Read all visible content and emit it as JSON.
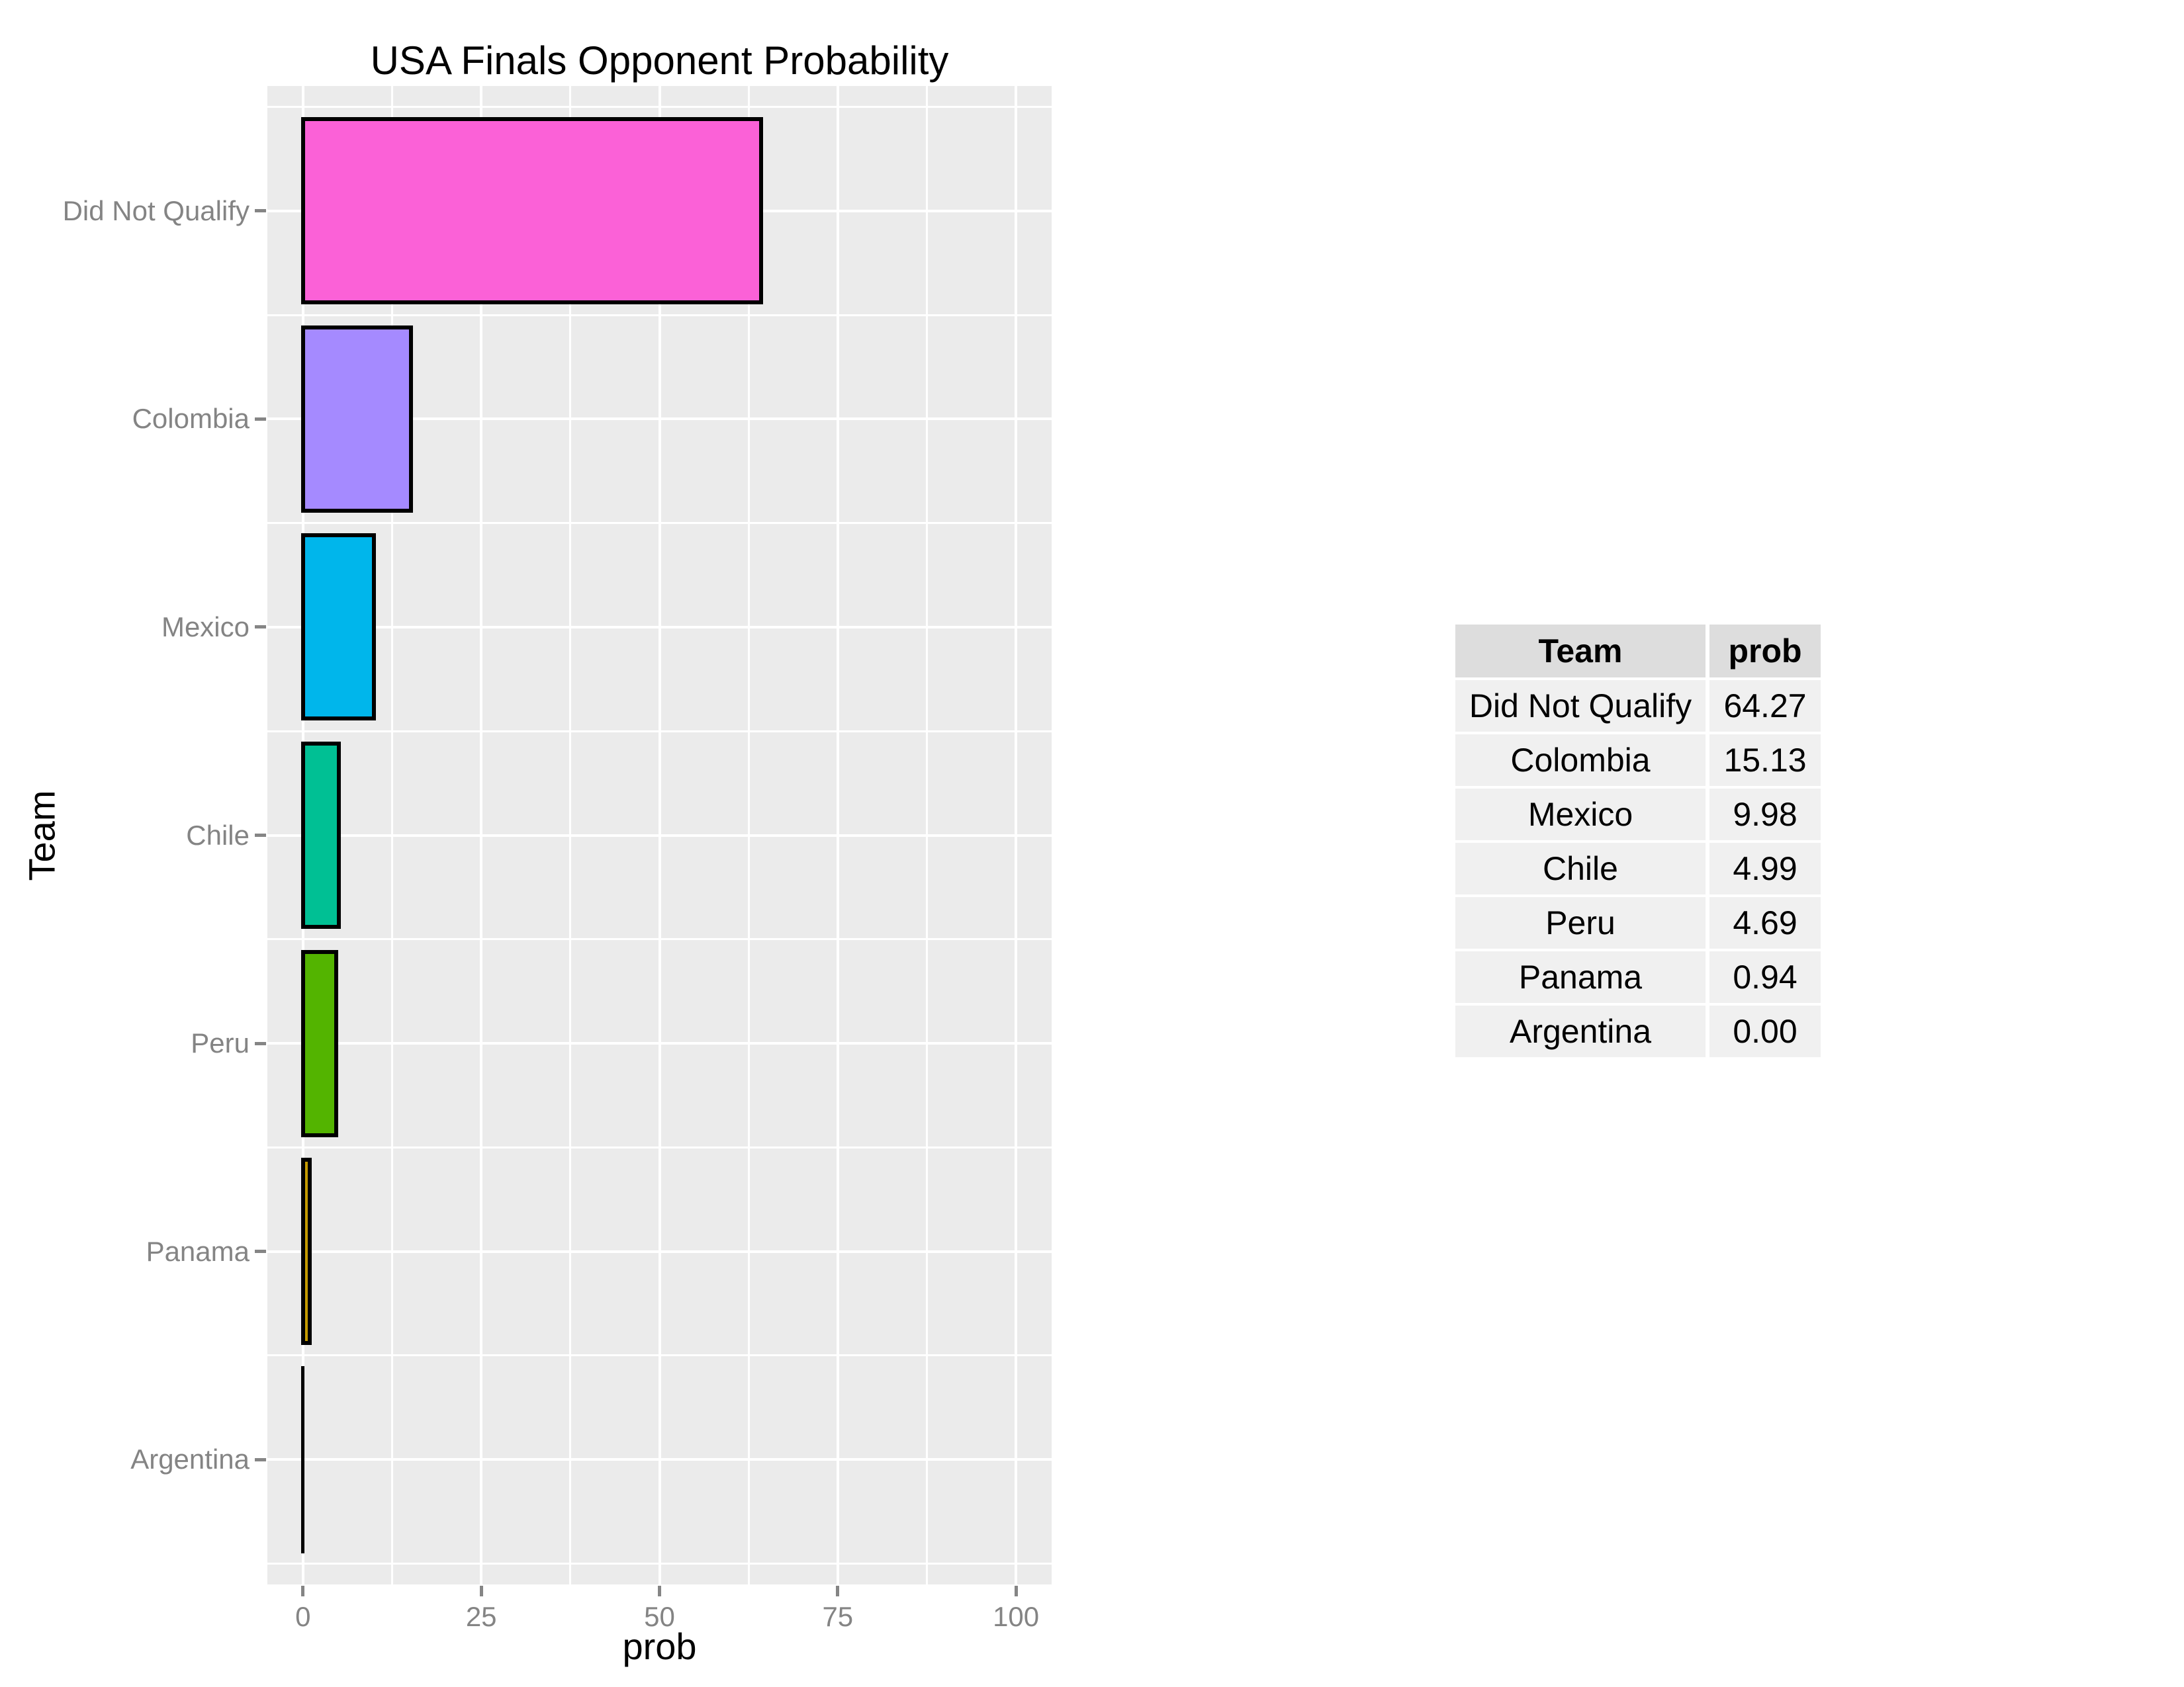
{
  "chart_data": {
    "type": "bar",
    "orientation": "horizontal",
    "title": "USA Finals Opponent Probability",
    "xlabel": "prob",
    "ylabel": "Team",
    "categories": [
      "Did Not Qualify",
      "Colombia",
      "Mexico",
      "Chile",
      "Peru",
      "Panama",
      "Argentina"
    ],
    "values": [
      64.27,
      15.13,
      9.98,
      4.99,
      4.69,
      0.94,
      0.0
    ],
    "bar_colors": [
      "#FB61D7",
      "#A58AFF",
      "#00B6EB",
      "#00C094",
      "#53B400",
      "#C49A00",
      "#F8766D"
    ],
    "bar_outline_color": "#000000",
    "x_ticks": [
      0,
      25,
      50,
      75,
      100
    ],
    "x_minor_ticks": [
      12.5,
      37.5,
      62.5,
      87.5
    ],
    "xlim": [
      -5,
      105
    ],
    "grid": "on",
    "grid_color": "#FFFFFF",
    "panel_bg": "#EBEBEB",
    "axis_text_color": "#848484",
    "tick_color": "#858585",
    "legend_position": "none"
  },
  "table": {
    "headers": [
      "Team",
      "prob"
    ],
    "rows": [
      [
        "Did Not Qualify",
        "64.27"
      ],
      [
        "Colombia",
        "15.13"
      ],
      [
        "Mexico",
        "9.98"
      ],
      [
        "Chile",
        "4.99"
      ],
      [
        "Peru",
        "4.69"
      ],
      [
        "Panama",
        "0.94"
      ],
      [
        "Argentina",
        "0.00"
      ]
    ],
    "header_bg": "#DDDDDD",
    "row_bg": "#F0F0F0"
  }
}
